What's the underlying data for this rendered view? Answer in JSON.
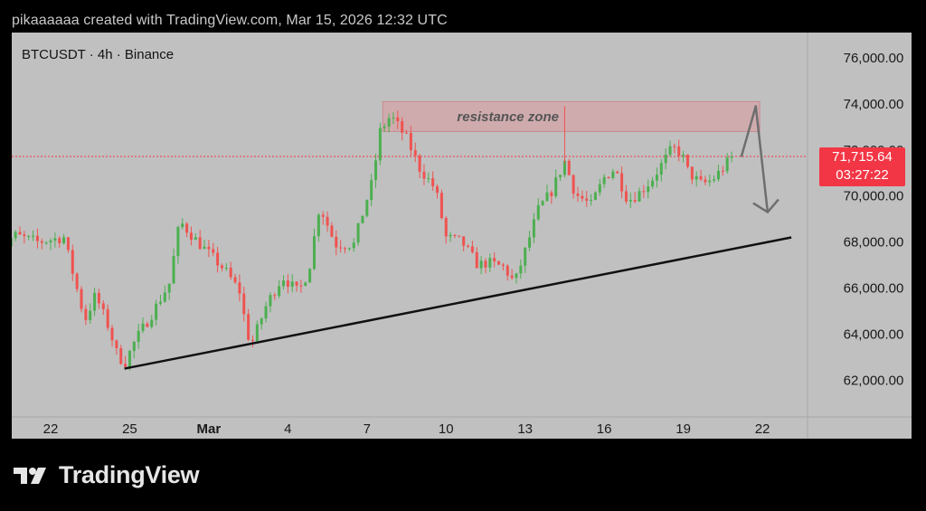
{
  "header": {
    "text": "pikaaaaaa created with TradingView.com, Mar 15, 2026 12:32 UTC"
  },
  "symbol": {
    "label": "BTCUSDT · 4h · Binance"
  },
  "price_tag": {
    "price": "71,715.64",
    "countdown": "03:27:22"
  },
  "branding": {
    "logo_text": "TradingView"
  },
  "colors": {
    "up": "#4caf50",
    "down": "#ef5350",
    "price_line": "#f23645",
    "zone_fill": "#d4a4a8",
    "zone_border": "#c88a8f"
  },
  "chart_data": {
    "type": "candlestick",
    "title": "BTCUSDT · 4h · Binance",
    "ylim": [
      60400,
      77100
    ],
    "y_ticks": [
      62000,
      64000,
      66000,
      68000,
      70000,
      72000,
      74000,
      76000
    ],
    "y_tick_labels": [
      "62,000.00",
      "64,000.00",
      "66,000.00",
      "68,000.00",
      "70,000.00",
      "72,000.00",
      "74,000.00",
      "76,000.00"
    ],
    "x_ticks": [
      {
        "label": "22",
        "day": 22
      },
      {
        "label": "25",
        "day": 25
      },
      {
        "label": "Mar",
        "day": 28
      },
      {
        "label": "4",
        "day": 31
      },
      {
        "label": "7",
        "day": 34
      },
      {
        "label": "10",
        "day": 37
      },
      {
        "label": "13",
        "day": 40
      },
      {
        "label": "16",
        "day": 43
      },
      {
        "label": "19",
        "day": 46
      },
      {
        "label": "22",
        "day": 49
      }
    ],
    "last_price": 71715.64,
    "anchors": [
      [
        20.0,
        67400
      ],
      [
        20.6,
        68300
      ],
      [
        21.5,
        68000
      ],
      [
        22.5,
        68200
      ],
      [
        23.3,
        64600
      ],
      [
        23.7,
        65700
      ],
      [
        24.2,
        64300
      ],
      [
        24.5,
        63200
      ],
      [
        24.8,
        62700
      ],
      [
        25.2,
        63700
      ],
      [
        25.8,
        64800
      ],
      [
        26.5,
        66200
      ],
      [
        26.9,
        68900
      ],
      [
        27.5,
        68100
      ],
      [
        28.0,
        67500
      ],
      [
        28.6,
        66800
      ],
      [
        29.2,
        65800
      ],
      [
        29.4,
        64300
      ],
      [
        29.6,
        63500
      ],
      [
        30.2,
        65300
      ],
      [
        30.8,
        66500
      ],
      [
        31.4,
        65800
      ],
      [
        31.8,
        66800
      ],
      [
        32.2,
        69600
      ],
      [
        32.8,
        67900
      ],
      [
        33.5,
        67900
      ],
      [
        33.9,
        69500
      ],
      [
        34.2,
        70600
      ],
      [
        34.5,
        72800
      ],
      [
        34.9,
        73500
      ],
      [
        35.5,
        72500
      ],
      [
        36.0,
        71200
      ],
      [
        36.6,
        70300
      ],
      [
        37.0,
        68200
      ],
      [
        37.6,
        68000
      ],
      [
        38.2,
        67000
      ],
      [
        38.6,
        67100
      ],
      [
        39.2,
        66900
      ],
      [
        39.6,
        66200
      ],
      [
        40.0,
        67600
      ],
      [
        40.5,
        69400
      ],
      [
        41.0,
        70200
      ],
      [
        41.5,
        71500
      ],
      [
        41.9,
        70100
      ],
      [
        42.5,
        69600
      ],
      [
        43.0,
        70800
      ],
      [
        43.4,
        71200
      ],
      [
        43.9,
        69800
      ],
      [
        44.3,
        70100
      ],
      [
        44.8,
        70700
      ],
      [
        45.2,
        71400
      ],
      [
        45.6,
        72100
      ],
      [
        45.95,
        71800
      ],
      [
        46.2,
        71000
      ],
      [
        46.7,
        70500
      ],
      [
        47.1,
        70700
      ],
      [
        47.5,
        71200
      ],
      [
        47.85,
        71715
      ]
    ],
    "annotations": [
      {
        "type": "rectangle",
        "label": "resistance zone",
        "x0": 34.6,
        "x1": 48.9,
        "y0": 72800,
        "y1": 74100
      },
      {
        "type": "trendline",
        "x0": 24.8,
        "y0": 62500,
        "x1": 50.1,
        "y1": 68200
      },
      {
        "type": "projection-arrow",
        "points": [
          [
            48.2,
            71700
          ],
          [
            48.75,
            73900
          ],
          [
            49.2,
            69300
          ]
        ]
      }
    ]
  }
}
